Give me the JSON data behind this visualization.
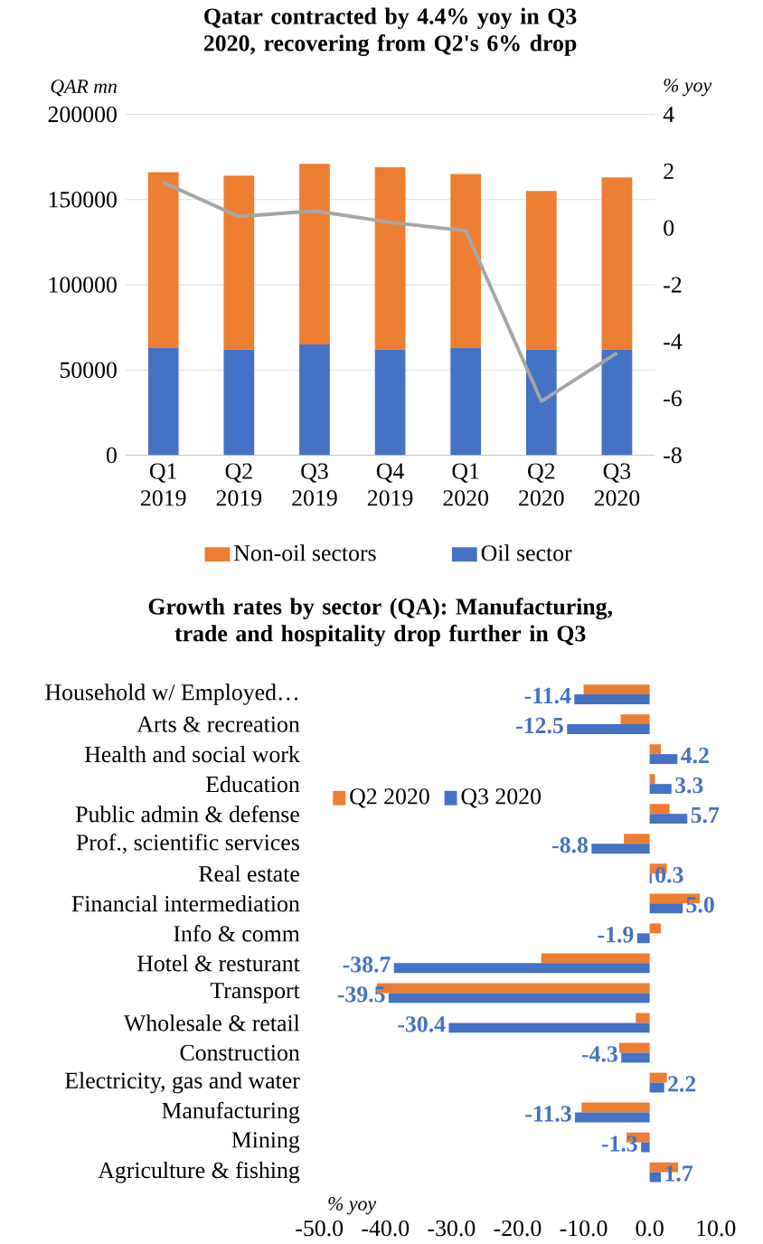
{
  "chart_data": [
    {
      "type": "bar",
      "title": "Qatar contracted by 4.4% yoy in Q3 2020, recovering from Q2's 6% drop",
      "ylabel": "QAR mn",
      "y2label": "% yoy",
      "categories": [
        "Q1 2019",
        "Q2 2019",
        "Q3 2019",
        "Q4 2019",
        "Q1 2020",
        "Q2 2020",
        "Q3 2020"
      ],
      "stacked": true,
      "series": [
        {
          "name": "Oil sector",
          "color": "#4472c4",
          "values": [
            63000,
            62000,
            65000,
            62000,
            63000,
            62000,
            62000
          ]
        },
        {
          "name": "Non-oil sectors",
          "color": "#ed7d31",
          "values": [
            103000,
            102000,
            106000,
            107000,
            102000,
            93000,
            101000
          ]
        },
        {
          "type": "line",
          "axis": "y2",
          "color": "#a5a5a5",
          "values": [
            1.6,
            0.4,
            0.6,
            0.2,
            -0.1,
            -6.1,
            -4.4
          ]
        }
      ],
      "ylim": [
        0,
        200000
      ],
      "yticks": [
        0,
        50000,
        100000,
        150000,
        200000
      ],
      "y2lim": [
        -8,
        4
      ],
      "y2ticks": [
        -8,
        -6,
        -4,
        -2,
        0,
        2,
        4
      ],
      "grid": "y",
      "legend": "bottom",
      "marker": "none"
    },
    {
      "type": "bar",
      "orientation": "horizontal",
      "title": "Growth rates by sector (QA): Manufacturing, trade and hospitality drop further in Q3",
      "xlabel": "% yoy",
      "categories": [
        "Household w/ Employed…",
        "Arts & recreation",
        "Health and social work",
        "Education",
        "Public admin & defense",
        "Prof., scientific services",
        "Real estate",
        "Financial intermediation",
        "Info & comm",
        "Hotel & resturant",
        "Transport",
        "Wholesale & retail",
        "Construction",
        "Electricity, gas and water",
        "Manufacturing",
        "Mining",
        "Agriculture & fishing"
      ],
      "series": [
        {
          "name": "Q2 2020",
          "color": "#ed7d31",
          "values": [
            -10.0,
            -4.4,
            1.7,
            0.8,
            3.0,
            -3.9,
            2.6,
            7.6,
            1.7,
            -16.4,
            -41.3,
            -2.1,
            -4.6,
            2.6,
            -10.3,
            -3.5,
            4.3
          ]
        },
        {
          "name": "Q3 2020",
          "color": "#4472c4",
          "values": [
            -11.4,
            -12.5,
            4.2,
            3.3,
            5.7,
            -8.8,
            0.3,
            5.0,
            -1.9,
            -38.7,
            -39.5,
            -30.4,
            -4.3,
            2.2,
            -11.3,
            -1.3,
            1.7
          ],
          "value_labels": [
            "-11.4",
            "-12.5",
            "4.2",
            "3.3",
            "5.7",
            "-8.8",
            "0.3",
            "5.0",
            "-1.9",
            "-38.7",
            "-39.5",
            "-30.4",
            "-4.3",
            "2.2",
            "-11.3",
            "-1.3",
            "1.7"
          ]
        }
      ],
      "xlim": [
        -50,
        10
      ],
      "xticks": [
        {
          "value": -50,
          "label": "-50.0"
        },
        {
          "value": -40,
          "label": "-40.0"
        },
        {
          "value": -30,
          "label": "-30.0"
        },
        {
          "value": -20,
          "label": "-20.0"
        },
        {
          "value": -10,
          "label": "-10.0"
        },
        {
          "value": 0,
          "label": "0.0"
        },
        {
          "value": 10,
          "label": "10.0"
        }
      ],
      "legend": "top left"
    }
  ]
}
